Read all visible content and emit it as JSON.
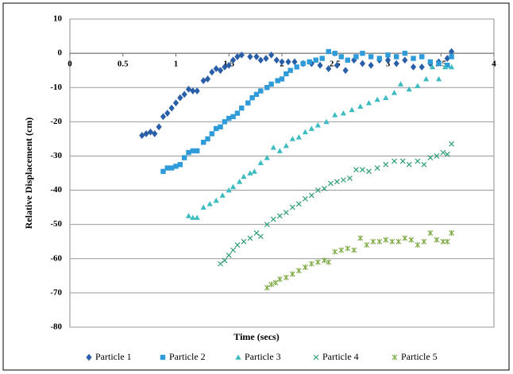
{
  "chart_data": {
    "type": "scatter",
    "xlabel": "Time (secs)",
    "ylabel": "Relative Displacement  (cm)",
    "xlim": [
      0,
      4
    ],
    "xticks": [
      0,
      0.5,
      1,
      1.5,
      2,
      2.5,
      3,
      3.5,
      4
    ],
    "ylim": [
      -80,
      10
    ],
    "yticks": [
      10,
      0,
      -10,
      -20,
      -30,
      -40,
      -50,
      -60,
      -70,
      -80
    ],
    "grid": true,
    "legend": "bottom",
    "series": [
      {
        "name": "Particle 1",
        "color": "#2a5fa8",
        "marker": "diamond",
        "x": [
          0.68,
          0.72,
          0.76,
          0.8,
          0.84,
          0.88,
          0.92,
          0.96,
          1.0,
          1.04,
          1.08,
          1.12,
          1.16,
          1.2,
          1.26,
          1.3,
          1.34,
          1.38,
          1.42,
          1.46,
          1.5,
          1.54,
          1.58,
          1.62,
          1.7,
          1.76,
          1.8,
          1.85,
          1.9,
          1.95,
          2.0,
          2.06,
          2.12,
          2.2,
          2.28,
          2.36,
          2.44,
          2.52,
          2.6,
          2.68,
          2.76,
          2.84,
          2.92,
          3.0,
          3.08,
          3.16,
          3.24,
          3.32,
          3.4,
          3.48,
          3.56,
          3.6
        ],
        "values": [
          -24,
          -23.5,
          -23,
          -23.5,
          -21.5,
          -18.5,
          -17.5,
          -16,
          -14.5,
          -13,
          -12,
          -10.5,
          -11,
          -11,
          -8,
          -7.5,
          -5.5,
          -4.5,
          -5,
          -4,
          -3.5,
          -2,
          -1,
          -0.5,
          -1,
          -1,
          -2,
          -1.5,
          -0.5,
          -2,
          -2.5,
          -2.5,
          -2.5,
          -3,
          -3,
          -3.5,
          -4.5,
          -3.5,
          -5,
          -2,
          -3,
          -3.5,
          -2,
          -2,
          -3,
          -2,
          -4,
          -4,
          -3,
          -2.5,
          -1.5,
          0.5
        ]
      },
      {
        "name": "Particle 2",
        "color": "#2f9bd8",
        "marker": "square",
        "x": [
          0.88,
          0.92,
          0.96,
          1.0,
          1.04,
          1.08,
          1.12,
          1.16,
          1.2,
          1.26,
          1.3,
          1.34,
          1.38,
          1.42,
          1.46,
          1.5,
          1.54,
          1.58,
          1.62,
          1.68,
          1.72,
          1.76,
          1.8,
          1.86,
          1.9,
          1.96,
          2.0,
          2.04,
          2.08,
          2.14,
          2.2,
          2.26,
          2.32,
          2.38,
          2.44,
          2.5,
          2.56,
          2.62,
          2.7,
          2.76,
          2.84,
          2.92,
          3.0,
          3.08,
          3.16,
          3.24,
          3.32,
          3.4,
          3.48,
          3.56,
          3.6
        ],
        "values": [
          -34.5,
          -33.5,
          -33.5,
          -33,
          -32.5,
          -30.5,
          -29,
          -28.5,
          -28.5,
          -26,
          -25,
          -23.5,
          -22,
          -21.5,
          -20,
          -19,
          -18.5,
          -17.5,
          -16,
          -14.5,
          -13,
          -12,
          -11,
          -10,
          -9,
          -8,
          -7.5,
          -6,
          -5,
          -4,
          -3,
          -2.5,
          -2,
          -1.5,
          0.5,
          0,
          -1,
          -2,
          -1,
          0,
          -1,
          -1.5,
          -0.5,
          -1,
          0,
          -1.5,
          -1,
          -2.5,
          -3,
          -3.5,
          -1
        ]
      },
      {
        "name": "Particle 3",
        "color": "#3cbcc0",
        "marker": "triangle",
        "x": [
          1.12,
          1.16,
          1.2,
          1.26,
          1.32,
          1.38,
          1.44,
          1.5,
          1.54,
          1.6,
          1.64,
          1.7,
          1.74,
          1.8,
          1.86,
          1.92,
          1.98,
          2.04,
          2.1,
          2.16,
          2.22,
          2.28,
          2.34,
          2.42,
          2.5,
          2.58,
          2.66,
          2.74,
          2.82,
          2.9,
          2.98,
          3.06,
          3.12,
          3.2,
          3.28,
          3.36,
          3.42,
          3.48,
          3.54,
          3.6
        ],
        "values": [
          -47.5,
          -48,
          -48,
          -45,
          -44,
          -43,
          -41.5,
          -40,
          -39,
          -37.5,
          -36,
          -35,
          -34.5,
          -32,
          -30.5,
          -27.5,
          -28.5,
          -27,
          -25,
          -24.5,
          -23,
          -22,
          -21,
          -20,
          -18,
          -17.5,
          -16.5,
          -15.5,
          -14.5,
          -13.5,
          -13,
          -11.5,
          -9,
          -10.5,
          -9.5,
          -7.5,
          -4,
          -7.5,
          -4,
          -4
        ]
      },
      {
        "name": "Particle 4",
        "color": "#2e9e72",
        "marker": "x",
        "x": [
          1.42,
          1.46,
          1.5,
          1.54,
          1.58,
          1.64,
          1.7,
          1.76,
          1.8,
          1.86,
          1.92,
          1.98,
          2.04,
          2.1,
          2.16,
          2.22,
          2.28,
          2.34,
          2.4,
          2.46,
          2.52,
          2.58,
          2.64,
          2.7,
          2.76,
          2.82,
          2.9,
          2.98,
          3.06,
          3.14,
          3.2,
          3.28,
          3.34,
          3.4,
          3.46,
          3.52,
          3.56,
          3.6
        ],
        "values": [
          -61.5,
          -60.5,
          -59,
          -57.5,
          -56,
          -55,
          -54,
          -52.5,
          -53.5,
          -50,
          -48.5,
          -47.5,
          -46.5,
          -45,
          -44,
          -42.5,
          -41.5,
          -40,
          -39.5,
          -38,
          -37.5,
          -37,
          -36.5,
          -34,
          -34,
          -34.5,
          -33.5,
          -32.5,
          -31.5,
          -31.5,
          -32.5,
          -31.5,
          -32.5,
          -30.5,
          -30,
          -29,
          -29.5,
          -26.5
        ]
      },
      {
        "name": "Particle 5",
        "color": "#7aa83e",
        "marker": "asterisk",
        "x": [
          1.86,
          1.9,
          1.94,
          1.98,
          2.04,
          2.1,
          2.16,
          2.22,
          2.28,
          2.34,
          2.4,
          2.44,
          2.5,
          2.56,
          2.62,
          2.68,
          2.74,
          2.8,
          2.86,
          2.92,
          2.98,
          3.04,
          3.1,
          3.16,
          3.22,
          3.28,
          3.34,
          3.4,
          3.46,
          3.52,
          3.56,
          3.6
        ],
        "values": [
          -68.5,
          -67.5,
          -67,
          -66,
          -65.5,
          -64.5,
          -63.5,
          -62.5,
          -61.5,
          -61,
          -60.5,
          -61,
          -58,
          -57.5,
          -57,
          -57.5,
          -54,
          -56,
          -55,
          -55,
          -54.5,
          -55,
          -55,
          -54,
          -54.5,
          -56,
          -55,
          -52.5,
          -54.5,
          -55,
          -55,
          -52.5
        ]
      }
    ]
  }
}
